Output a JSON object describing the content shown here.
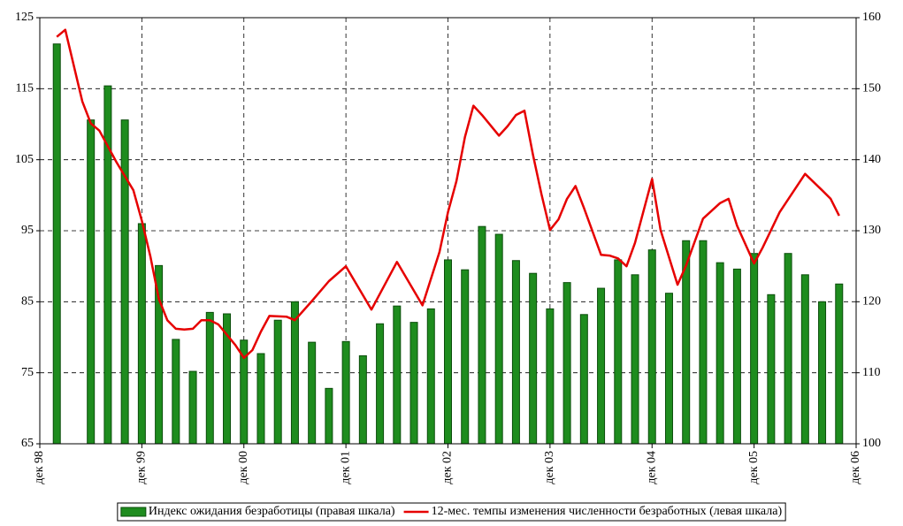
{
  "chart_data": {
    "type": "bar_line",
    "xlim": [
      0,
      96
    ],
    "xticks": [
      {
        "value": 0,
        "label": "дек 98"
      },
      {
        "value": 12,
        "label": "дек 99"
      },
      {
        "value": 24,
        "label": "дек 00"
      },
      {
        "value": 36,
        "label": "дек 01"
      },
      {
        "value": 48,
        "label": "дек 02"
      },
      {
        "value": 60,
        "label": "дек 03"
      },
      {
        "value": 72,
        "label": "дек 04"
      },
      {
        "value": 84,
        "label": "дек 05"
      },
      {
        "value": 96,
        "label": "дек 06"
      }
    ],
    "ylim": [
      65,
      125
    ],
    "yticks": [
      65,
      75,
      85,
      95,
      105,
      115,
      125
    ],
    "y2lim": [
      100,
      160
    ],
    "y2ticks": [
      100,
      110,
      120,
      130,
      140,
      150,
      160
    ],
    "grid": true,
    "legend": "bottom",
    "series": [
      {
        "name": "Индекс ожидания безработицы (правая шкала)",
        "type": "bar",
        "axis": "y2",
        "color": "#1e8c1e",
        "x": [
          2,
          6,
          8,
          10,
          12,
          14,
          16,
          18,
          20,
          22,
          24,
          26,
          28,
          30,
          32,
          34,
          36,
          38,
          40,
          42,
          44,
          46,
          48,
          50,
          52,
          54,
          56,
          58,
          60,
          62,
          64,
          66,
          68,
          70,
          72,
          74,
          76,
          78,
          80,
          82,
          84,
          86,
          88,
          90,
          92,
          94
        ],
        "values": [
          156.3,
          145.6,
          150.4,
          145.6,
          131.0,
          125.1,
          114.7,
          110.2,
          118.5,
          118.3,
          114.6,
          112.7,
          117.4,
          120.0,
          114.3,
          107.8,
          114.4,
          112.4,
          116.9,
          119.4,
          117.1,
          119.0,
          125.9,
          124.5,
          130.6,
          129.5,
          125.8,
          124.0,
          119.0,
          122.7,
          118.2,
          121.9,
          125.9,
          123.8,
          127.3,
          121.2,
          128.6,
          128.6,
          125.5,
          124.6,
          126.8,
          121.0,
          126.8,
          123.8,
          120.0,
          122.5
        ]
      },
      {
        "name": "12-мес. темпы изменения численности безработных (левая шкала)",
        "type": "line",
        "color": "#e60000",
        "x": [
          2,
          3,
          5,
          6,
          7,
          9,
          11,
          12,
          13,
          14,
          15,
          16,
          17,
          18,
          19,
          20,
          21,
          23,
          24,
          25,
          26,
          27,
          29,
          30,
          32,
          34,
          36,
          39,
          42,
          45,
          47,
          48,
          49,
          50,
          51,
          52,
          54,
          55,
          56,
          57,
          58,
          59,
          60,
          61,
          62,
          63,
          64,
          66,
          67,
          68,
          69,
          70,
          72,
          73,
          75,
          76,
          78,
          80,
          81,
          82,
          84,
          85,
          87,
          90,
          92,
          93,
          94
        ],
        "values": [
          122.3,
          123.3,
          113.2,
          110.1,
          109.1,
          104.7,
          100.7,
          96.4,
          91.4,
          85.4,
          82.4,
          81.2,
          81.1,
          81.2,
          82.4,
          82.4,
          81.8,
          78.9,
          77.1,
          78.2,
          80.8,
          83.0,
          82.9,
          82.4,
          85.1,
          87.9,
          90.0,
          83.9,
          90.6,
          84.5,
          92.0,
          97.6,
          102.0,
          108.2,
          112.6,
          111.3,
          108.4,
          109.7,
          111.3,
          111.9,
          105.7,
          100.1,
          95.1,
          96.6,
          99.5,
          101.3,
          98.2,
          91.6,
          91.5,
          91.1,
          90.0,
          93.3,
          102.3,
          95.1,
          87.4,
          90.1,
          96.7,
          98.9,
          99.5,
          95.7,
          90.4,
          92.6,
          97.6,
          103.0,
          100.7,
          99.5,
          97.1
        ]
      }
    ]
  }
}
